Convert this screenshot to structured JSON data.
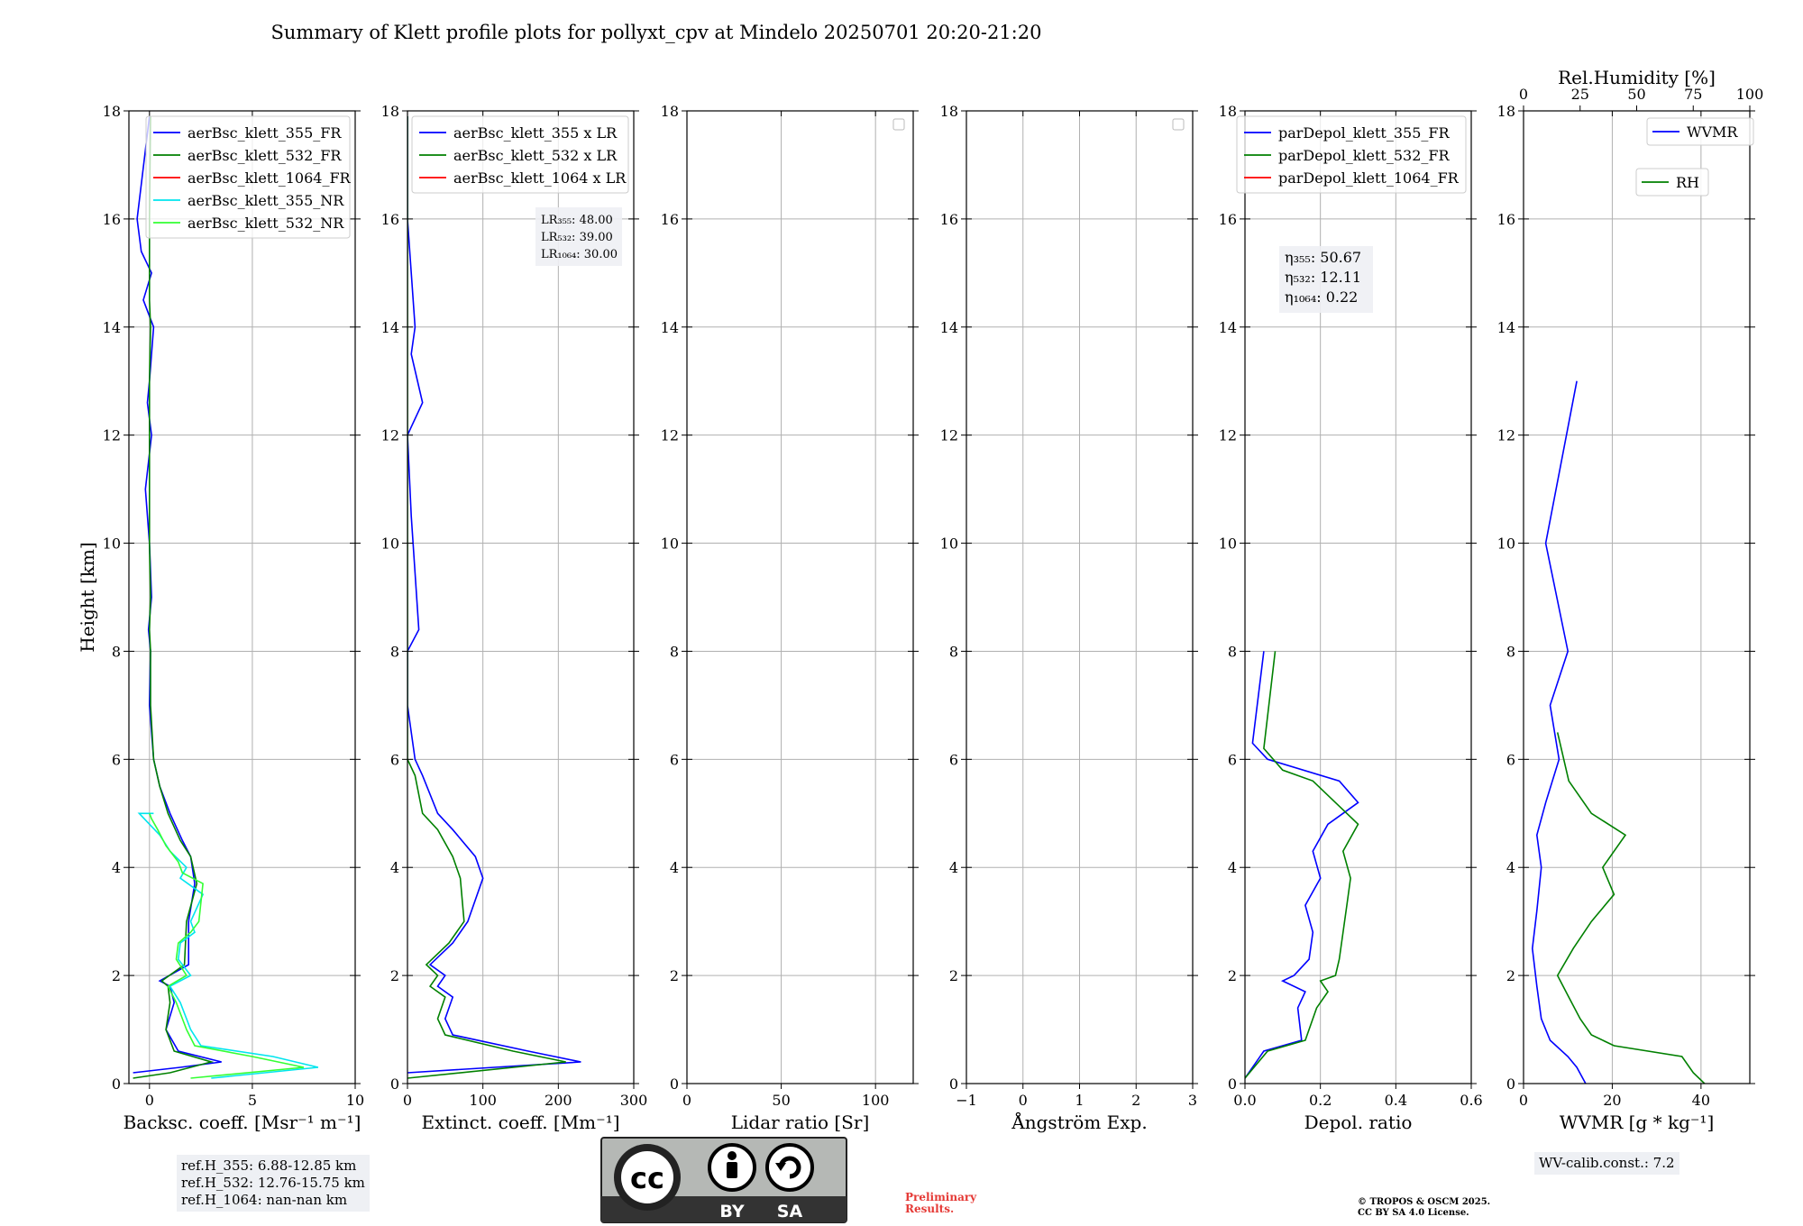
{
  "figure": {
    "title": "Summary of Klett profile plots for pollyxt_cpv at Mindelo 20250701 20:20-21:20",
    "ref_heights": [
      "ref.H_355: 6.88-12.85 km",
      "ref.H_532: 12.76-15.75 km",
      "ref.H_1064: nan-nan km"
    ],
    "wv_calib": "WV-calib.const.: 7.2",
    "preliminary": [
      "Preliminary",
      "Results."
    ],
    "copyright": [
      "© TROPOS & OSCM 2025.",
      "CC BY SA 4.0 License."
    ],
    "license_logo": {
      "cc": "cc",
      "by": "BY",
      "sa": "SA"
    }
  },
  "chart_data": [
    {
      "id": "backscatter",
      "type": "line",
      "xlabel": "Backsc. coeff. [Msr⁻¹ m⁻¹]",
      "ylabel": "Height [km]",
      "xlim": [
        -1,
        10
      ],
      "ylim": [
        0,
        18
      ],
      "xticks": [
        0,
        5,
        10
      ],
      "yticks": [
        0,
        2,
        4,
        6,
        8,
        10,
        12,
        14,
        16,
        18
      ],
      "grid": true,
      "legend": "upper-right",
      "series": [
        {
          "name": "aerBsc_klett_355_FR",
          "color": "#0000ff",
          "x": [
            -0.8,
            1.5,
            3.5,
            1.4,
            0.8,
            1.2,
            1.0,
            0.5,
            1.9,
            1.9,
            2.2,
            2.0,
            1.6,
            1.0,
            0.5,
            0.2,
            0.0,
            0.05,
            -0.05,
            0.1,
            0.0,
            -0.2,
            0.1,
            -0.1,
            0.0,
            0.2,
            -0.3,
            0.1,
            -0.4,
            -0.6,
            0.0
          ],
          "y": [
            0.2,
            0.3,
            0.4,
            0.6,
            1.0,
            1.5,
            1.8,
            1.9,
            2.2,
            3.0,
            3.7,
            4.2,
            4.5,
            5.0,
            5.5,
            6.0,
            7.0,
            8.0,
            8.4,
            9.0,
            10.0,
            11.0,
            12.0,
            12.6,
            13.0,
            14.0,
            14.5,
            15.0,
            15.4,
            16.0,
            17.9
          ]
        },
        {
          "name": "aerBsc_klett_532_FR",
          "color": "#008000",
          "x": [
            -0.8,
            1.0,
            3.0,
            1.2,
            0.8,
            1.0,
            0.9,
            0.6,
            1.7,
            1.8,
            2.3,
            2.0,
            1.5,
            0.9,
            0.5,
            0.2,
            0.05,
            0.05,
            0.0,
            0.05,
            0.0,
            0.0,
            0.0,
            0.0,
            0.0,
            0.05,
            0.0,
            0.0,
            0.0,
            0.0,
            0.05
          ],
          "y": [
            0.1,
            0.2,
            0.4,
            0.6,
            1.0,
            1.5,
            1.8,
            1.9,
            2.2,
            3.0,
            3.7,
            4.2,
            4.5,
            5.0,
            5.5,
            6.0,
            7.0,
            8.0,
            8.4,
            9.0,
            10.0,
            11.0,
            12.0,
            12.6,
            13.0,
            14.0,
            14.5,
            15.0,
            15.4,
            16.0,
            17.9
          ]
        },
        {
          "name": "aerBsc_klett_1064_FR",
          "color": "#ff0000",
          "x": [],
          "y": []
        },
        {
          "name": "aerBsc_klett_355_NR",
          "color": "#00e5ee",
          "x": [
            3.0,
            8.2,
            6.0,
            2.5,
            2.0,
            1.5,
            1.0,
            2.0,
            1.4,
            1.5,
            2.2,
            2.0,
            2.6,
            1.5,
            1.8,
            1.0,
            0.5,
            0.0,
            -0.5,
            0.2
          ],
          "y": [
            0.1,
            0.3,
            0.5,
            0.7,
            1.0,
            1.5,
            1.8,
            2.0,
            2.3,
            2.6,
            2.8,
            3.0,
            3.5,
            3.8,
            4.0,
            4.3,
            4.6,
            4.8,
            5.0,
            5.0
          ]
        },
        {
          "name": "aerBsc_klett_532_NR",
          "color": "#33ff33",
          "x": [
            2.0,
            7.5,
            5.0,
            2.2,
            1.8,
            1.3,
            0.9,
            1.8,
            1.3,
            1.4,
            2.0,
            2.4,
            2.6,
            1.6,
            1.4,
            0.8,
            0.4,
            0.1,
            0.0
          ],
          "y": [
            0.1,
            0.3,
            0.5,
            0.7,
            1.0,
            1.5,
            1.8,
            2.0,
            2.3,
            2.6,
            2.8,
            3.0,
            3.7,
            3.9,
            4.1,
            4.4,
            4.7,
            4.9,
            5.0
          ]
        }
      ],
      "annotation": []
    },
    {
      "id": "extinction",
      "type": "line",
      "xlabel": "Extinct. coeff. [Mm⁻¹]",
      "ylabel": "",
      "xlim": [
        0,
        300
      ],
      "ylim": [
        0,
        18
      ],
      "xticks": [
        0,
        100,
        200,
        300
      ],
      "yticks": [
        0,
        2,
        4,
        6,
        8,
        10,
        12,
        14,
        16,
        18
      ],
      "grid": true,
      "legend": "upper-right",
      "series": [
        {
          "name": "aerBsc_klett_355 x LR",
          "color": "#0000ff",
          "x": [
            0,
            230,
            160,
            60,
            50,
            60,
            40,
            50,
            30,
            60,
            80,
            100,
            90,
            60,
            40,
            20,
            10,
            0,
            0,
            15,
            5,
            0,
            20,
            5,
            10,
            0,
            0
          ],
          "y": [
            0.2,
            0.4,
            0.6,
            0.9,
            1.2,
            1.6,
            1.8,
            2.0,
            2.2,
            2.6,
            3.0,
            3.8,
            4.2,
            4.7,
            5.0,
            5.7,
            6.0,
            7.0,
            8.0,
            8.4,
            10.5,
            12.0,
            12.6,
            13.5,
            14.0,
            16.0,
            17.9
          ]
        },
        {
          "name": "aerBsc_klett_532 x LR",
          "color": "#008000",
          "x": [
            0,
            210,
            140,
            50,
            40,
            50,
            30,
            40,
            25,
            55,
            75,
            70,
            60,
            40,
            20,
            10,
            0,
            0,
            0,
            0,
            0,
            0,
            0,
            0,
            0,
            0,
            0
          ],
          "y": [
            0.1,
            0.4,
            0.6,
            0.9,
            1.2,
            1.6,
            1.8,
            2.0,
            2.2,
            2.6,
            3.0,
            3.8,
            4.2,
            4.7,
            5.0,
            5.7,
            6.0,
            7.0,
            8.0,
            8.4,
            10.5,
            12.0,
            12.6,
            13.5,
            14.0,
            16.0,
            17.9
          ]
        },
        {
          "name": "aerBsc_klett_1064 x LR",
          "color": "#ff0000",
          "x": [],
          "y": []
        }
      ],
      "annotation": [
        "LR₃₅₅: 48.00",
        "LR₅₃₂: 39.00",
        "LR₁₀₆₄: 30.00"
      ]
    },
    {
      "id": "lidar-ratio",
      "type": "line",
      "xlabel": "Lidar ratio [Sr]",
      "ylabel": "",
      "xlim": [
        0,
        120
      ],
      "ylim": [
        0,
        18
      ],
      "xticks": [
        0,
        50,
        100
      ],
      "yticks": [
        0,
        2,
        4,
        6,
        8,
        10,
        12,
        14,
        16,
        18
      ],
      "grid": true,
      "legend": "upper-right (empty)",
      "series": [],
      "annotation": []
    },
    {
      "id": "angstrom",
      "type": "line",
      "xlabel": "Ångström Exp.",
      "ylabel": "",
      "xlim": [
        -1,
        3
      ],
      "ylim": [
        0,
        18
      ],
      "xticks": [
        -1,
        0,
        1,
        2,
        3
      ],
      "yticks": [
        0,
        2,
        4,
        6,
        8,
        10,
        12,
        14,
        16,
        18
      ],
      "grid": true,
      "legend": "upper-right (empty)",
      "series": [],
      "annotation": []
    },
    {
      "id": "depolarization",
      "type": "line",
      "xlabel": "Depol. ratio",
      "ylabel": "",
      "xlim": [
        0,
        0.6
      ],
      "ylim": [
        0,
        18
      ],
      "xticks": [
        0.0,
        0.2,
        0.4,
        0.6
      ],
      "yticks": [
        0,
        2,
        4,
        6,
        8,
        10,
        12,
        14,
        16,
        18
      ],
      "grid": true,
      "legend": "upper-right",
      "series": [
        {
          "name": "parDepol_klett_355_FR",
          "color": "#0000ff",
          "x": [
            0.0,
            0.05,
            0.15,
            0.14,
            0.16,
            0.1,
            0.13,
            0.17,
            0.18,
            0.16,
            0.2,
            0.18,
            0.22,
            0.3,
            0.25,
            0.06,
            0.02,
            0.05
          ],
          "y": [
            0.1,
            0.6,
            0.8,
            1.4,
            1.7,
            1.9,
            2.0,
            2.3,
            2.8,
            3.3,
            3.8,
            4.3,
            4.8,
            5.2,
            5.6,
            6.0,
            6.3,
            8.0
          ]
        },
        {
          "name": "parDepol_klett_532_FR",
          "color": "#008000",
          "x": [
            0.0,
            0.06,
            0.16,
            0.19,
            0.22,
            0.2,
            0.24,
            0.25,
            0.26,
            0.27,
            0.28,
            0.26,
            0.3,
            0.24,
            0.18,
            0.1,
            0.05,
            0.08
          ],
          "y": [
            0.1,
            0.6,
            0.8,
            1.4,
            1.7,
            1.9,
            2.0,
            2.3,
            2.8,
            3.3,
            3.8,
            4.3,
            4.8,
            5.2,
            5.6,
            5.8,
            6.2,
            8.0
          ]
        },
        {
          "name": "parDepol_klett_1064_FR",
          "color": "#ff0000",
          "x": [],
          "y": []
        }
      ],
      "annotation": [
        "η₃₅₅: 50.67",
        "η₅₃₂: 12.11",
        "η₁₀₆₄: 0.22"
      ]
    },
    {
      "id": "wvmr",
      "type": "line",
      "xlabel": "WVMR [g * kg⁻¹]",
      "xlabel_top": "Rel.Humidity [%]",
      "ylabel": "",
      "xlim": [
        0,
        51
      ],
      "xlim_top": [
        0,
        100
      ],
      "ylim": [
        0,
        18
      ],
      "xticks": [
        0,
        20,
        40
      ],
      "xticks_top": [
        0,
        25,
        50,
        75,
        100
      ],
      "yticks": [
        0,
        2,
        4,
        6,
        8,
        10,
        12,
        14,
        16,
        18
      ],
      "grid": true,
      "legend": "upper-right",
      "series": [
        {
          "name": "WVMR",
          "color": "#0000ff",
          "axis": "bottom",
          "x": [
            14,
            12,
            10,
            6,
            4,
            3,
            2,
            3,
            4,
            3,
            5,
            8,
            6,
            10,
            5,
            12
          ],
          "y": [
            0.0,
            0.3,
            0.5,
            0.8,
            1.2,
            1.8,
            2.5,
            3.2,
            4.0,
            4.6,
            5.2,
            6.0,
            7.0,
            8.0,
            10.0,
            13.0
          ]
        },
        {
          "name": "RH",
          "color": "#008000",
          "axis": "top",
          "x": [
            80,
            75,
            70,
            40,
            30,
            25,
            20,
            15,
            22,
            30,
            40,
            35,
            45,
            30,
            20,
            15
          ],
          "y": [
            0.0,
            0.2,
            0.5,
            0.7,
            0.9,
            1.2,
            1.6,
            2.0,
            2.5,
            3.0,
            3.5,
            4.0,
            4.6,
            5.0,
            5.6,
            6.5
          ]
        }
      ],
      "annotation": []
    }
  ]
}
